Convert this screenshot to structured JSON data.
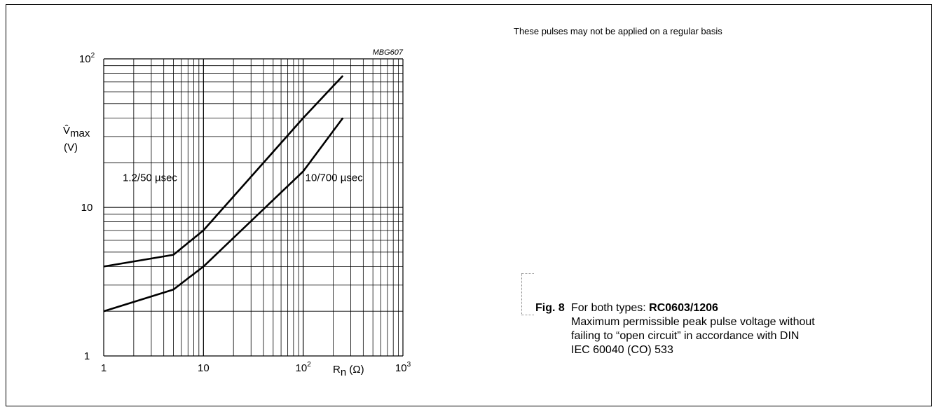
{
  "note": "These pulses may not be applied on a regular basis",
  "caption": {
    "fig_label": "Fig. 8",
    "intro": "For both types: ",
    "types": "RC0603/1206",
    "line2": "Maximum permissible peak pulse voltage without",
    "line3": "failing to “open circuit” in accordance with DIN",
    "line4": "IEC 60040 (CO) 533"
  },
  "chart_data": {
    "type": "line",
    "code": "MBG607",
    "ylabel_symbol": "V̂",
    "ylabel_sub": "max",
    "ylabel_unit": "(V)",
    "xlabel_symbol": "R",
    "xlabel_sub": "n",
    "xlabel_unit": " (Ω)",
    "x_scale": "log",
    "y_scale": "log",
    "xlim": [
      1,
      1000
    ],
    "ylim": [
      1,
      100
    ],
    "grid": true,
    "x_ticks": [
      {
        "base": "1",
        "exp": ""
      },
      {
        "base": "10",
        "exp": ""
      },
      {
        "base": "10",
        "exp": "2"
      },
      {
        "base": "10",
        "exp": "3"
      }
    ],
    "y_ticks": [
      {
        "base": "1",
        "exp": ""
      },
      {
        "base": "10",
        "exp": ""
      },
      {
        "base": "10",
        "exp": "2"
      }
    ],
    "series": [
      {
        "name": "1.2/50 µsec",
        "x": [
          1,
          5,
          10,
          100,
          250
        ],
        "y": [
          4,
          4.8,
          7,
          40,
          77
        ]
      },
      {
        "name": "10/700 µsec",
        "x": [
          1,
          5,
          10,
          100,
          250
        ],
        "y": [
          2,
          2.8,
          4,
          17.5,
          40
        ]
      }
    ],
    "line_color": "#000000"
  }
}
